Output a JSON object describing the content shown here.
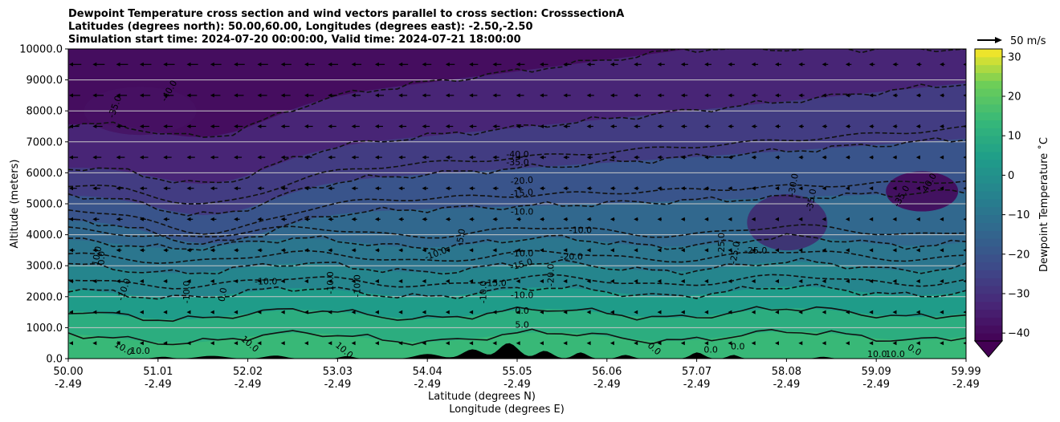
{
  "chart_data": {
    "type": "filled-contour cross section",
    "title_lines": [
      "Dewpoint Temperature cross section and wind vectors parallel to cross section: CrosssectionA",
      "Latitudes (degrees north): 50.00,60.00, Longitudes (degrees east): -2.50,-2.50",
      "Simulation start time: 2024-07-20 00:00:00, Valid time: 2024-07-21 18:00:00"
    ],
    "ylabel": "Altitude (meters)",
    "xlabel_lat": "Latitude (degrees N)",
    "xlabel_lon": "Longitude (degrees E)",
    "ylim": [
      0,
      10000
    ],
    "yticks": [
      "0.0",
      "1000.0",
      "2000.0",
      "3000.0",
      "4000.0",
      "5000.0",
      "6000.0",
      "7000.0",
      "8000.0",
      "9000.0",
      "10000.0"
    ],
    "xticks_lat": [
      "50.00",
      "51.01",
      "52.02",
      "53.03",
      "54.04",
      "55.05",
      "56.06",
      "57.07",
      "58.08",
      "59.09",
      "59.99"
    ],
    "xticks_lon": [
      "-2.49",
      "-2.49",
      "-2.49",
      "-2.49",
      "-2.49",
      "-2.49",
      "-2.49",
      "-2.49",
      "-2.49",
      "-2.49",
      "-2.49"
    ],
    "grid": "horizontal lines at y ticks",
    "colorbar": {
      "label": "Dewpoint Temperature ˚C",
      "ticks": [
        "30",
        "20",
        "10",
        "0",
        "−10",
        "−20",
        "−30",
        "−40"
      ],
      "tick_values": [
        30,
        20,
        10,
        0,
        -10,
        -20,
        -30,
        -40
      ],
      "range": [
        -42,
        32
      ],
      "extend": "min",
      "colormap": "viridis"
    },
    "quiver_key": "50 m/s",
    "contour_labels": [
      {
        "text": "-35.0",
        "lat": 50.55,
        "alt": 8100,
        "rot": -70
      },
      {
        "text": "-40.0",
        "lat": 51.15,
        "alt": 8600,
        "rot": -60
      },
      {
        "text": "-40.0",
        "lat": 55.0,
        "alt": 6500,
        "rot": 0
      },
      {
        "text": "-35.0",
        "lat": 55.0,
        "alt": 6250,
        "rot": 0
      },
      {
        "text": "-20.0",
        "lat": 55.05,
        "alt": 5650,
        "rot": -5
      },
      {
        "text": "-15.0",
        "lat": 55.05,
        "alt": 5250,
        "rot": -5
      },
      {
        "text": "-10.0",
        "lat": 55.05,
        "alt": 4650,
        "rot": 0
      },
      {
        "text": "-10.0",
        "lat": 55.7,
        "alt": 4050,
        "rot": 0
      },
      {
        "text": "-5.0",
        "lat": 54.4,
        "alt": 3900,
        "rot": -80
      },
      {
        "text": "-10.0",
        "lat": 54.1,
        "alt": 3300,
        "rot": -20
      },
      {
        "text": "-10.0",
        "lat": 55.05,
        "alt": 3300,
        "rot": 0
      },
      {
        "text": "-15.0",
        "lat": 55.05,
        "alt": 2950,
        "rot": -15
      },
      {
        "text": "-20.0",
        "lat": 55.6,
        "alt": 3200,
        "rot": 0
      },
      {
        "text": "-20.0",
        "lat": 55.4,
        "alt": 2700,
        "rot": -90
      },
      {
        "text": "-15.0",
        "lat": 54.75,
        "alt": 2350,
        "rot": 0
      },
      {
        "text": "-10.0",
        "lat": 54.65,
        "alt": 2150,
        "rot": -90
      },
      {
        "text": "-10.0",
        "lat": 55.05,
        "alt": 1950,
        "rot": 0
      },
      {
        "text": "0.0",
        "lat": 55.05,
        "alt": 1450,
        "rot": 0
      },
      {
        "text": "5.0",
        "lat": 55.05,
        "alt": 1000,
        "rot": 0
      },
      {
        "text": "-25.0",
        "lat": 57.3,
        "alt": 3700,
        "rot": -90
      },
      {
        "text": "-25.0",
        "lat": 57.45,
        "alt": 3400,
        "rot": -80
      },
      {
        "text": "-25.0",
        "lat": 57.65,
        "alt": 3400,
        "rot": 0
      },
      {
        "text": "-30.0",
        "lat": 58.1,
        "alt": 5600,
        "rot": -80
      },
      {
        "text": "-35.0",
        "lat": 58.3,
        "alt": 5100,
        "rot": -80
      },
      {
        "text": "-35.0",
        "lat": 59.3,
        "alt": 5200,
        "rot": -60
      },
      {
        "text": "-40.0",
        "lat": 59.6,
        "alt": 5600,
        "rot": -60
      },
      {
        "text": "10.0",
        "lat": 50.35,
        "alt": 3300,
        "rot": -80
      },
      {
        "text": "0.0",
        "lat": 50.4,
        "alt": 3250,
        "rot": -90
      },
      {
        "text": "-10.0",
        "lat": 50.65,
        "alt": 2200,
        "rot": -70
      },
      {
        "text": "-10.0",
        "lat": 51.35,
        "alt": 2150,
        "rot": -90
      },
      {
        "text": "0.0",
        "lat": 51.75,
        "alt": 2050,
        "rot": -80
      },
      {
        "text": "-10.0",
        "lat": 52.2,
        "alt": 2400,
        "rot": 0
      },
      {
        "text": "-10.0",
        "lat": 52.95,
        "alt": 2450,
        "rot": -90
      },
      {
        "text": "-10.0",
        "lat": 53.25,
        "alt": 2350,
        "rot": -90
      },
      {
        "text": "10.0",
        "lat": 50.6,
        "alt": 250,
        "rot": 30
      },
      {
        "text": "10.0",
        "lat": 50.8,
        "alt": 150,
        "rot": 0
      },
      {
        "text": "10.0",
        "lat": 52.0,
        "alt": 400,
        "rot": 40
      },
      {
        "text": "10.0",
        "lat": 53.05,
        "alt": 200,
        "rot": 40
      },
      {
        "text": "0.0",
        "lat": 56.5,
        "alt": 250,
        "rot": 40
      },
      {
        "text": "0.0",
        "lat": 57.15,
        "alt": 200,
        "rot": 0
      },
      {
        "text": "0.0",
        "lat": 57.45,
        "alt": 300,
        "rot": 0
      },
      {
        "text": "10.0",
        "lat": 59.0,
        "alt": 50,
        "rot": 0
      },
      {
        "text": "10.0",
        "lat": 59.2,
        "alt": 50,
        "rot": 0
      },
      {
        "text": "0.0",
        "lat": 59.4,
        "alt": 200,
        "rot": 30
      }
    ]
  }
}
